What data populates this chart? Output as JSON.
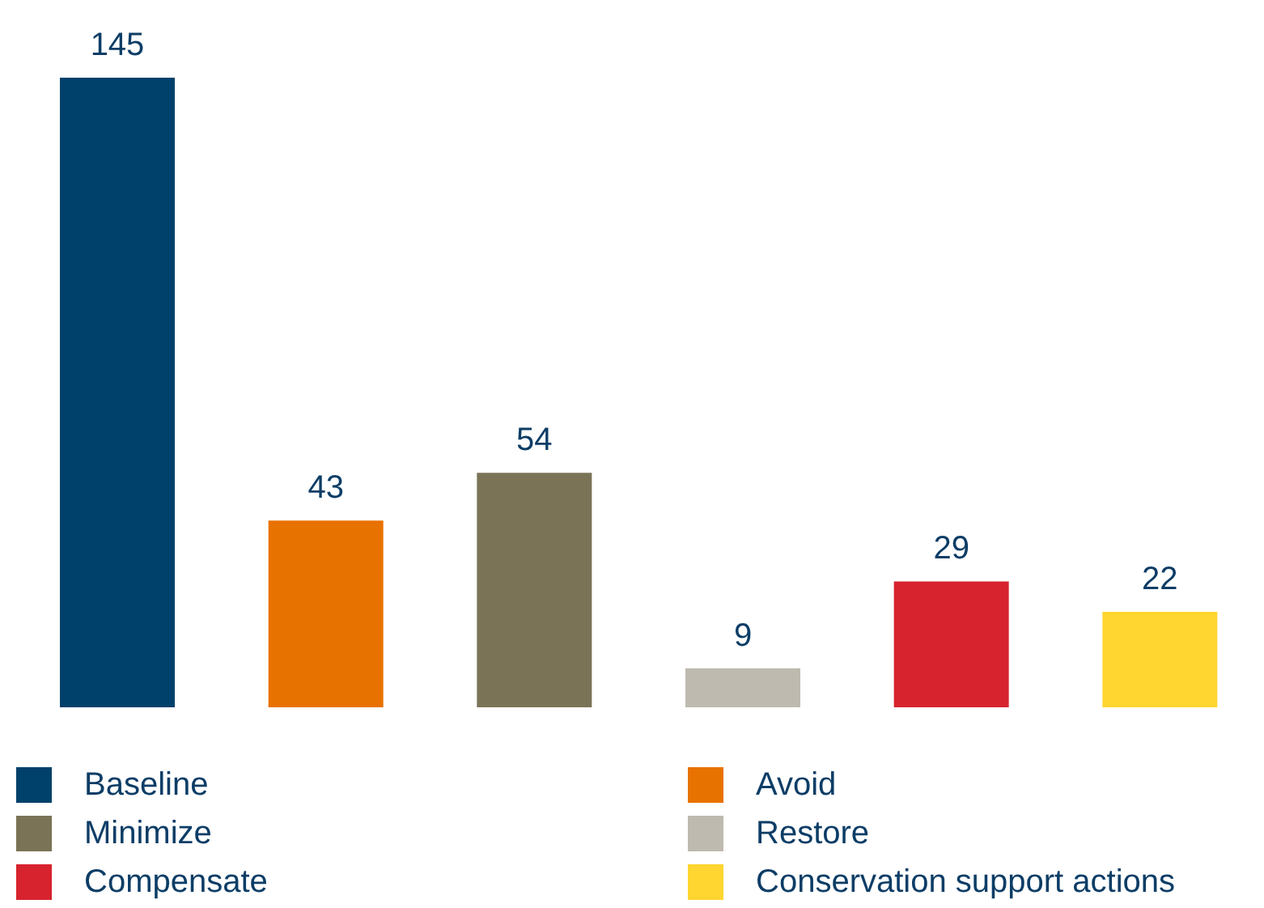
{
  "chart_data": {
    "type": "bar",
    "categories": [
      null,
      null,
      null,
      null,
      null,
      null
    ],
    "values": [
      145,
      43,
      54,
      9,
      29,
      22
    ],
    "colors": [
      "#00416b",
      "#e87200",
      "#7a7356",
      "#bfbaaf",
      "#d7232e",
      "#ffd530"
    ],
    "annotations": [
      "Baseline",
      "Avoid",
      "Minimize",
      "Restore",
      "Compensate",
      "Conservation support actions"
    ],
    "data_labels": true
  }
}
